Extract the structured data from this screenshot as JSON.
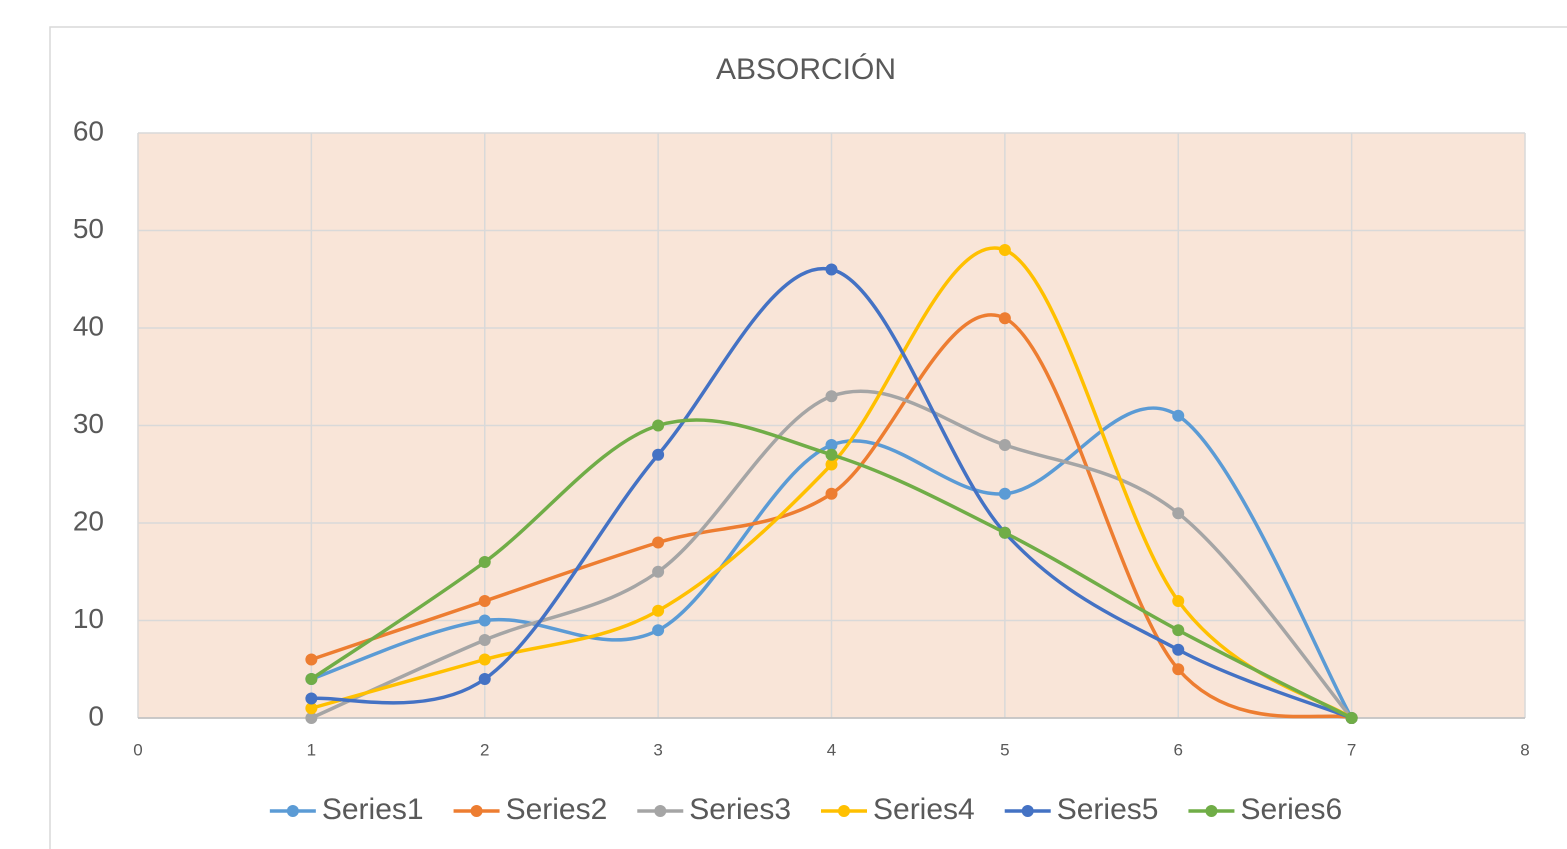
{
  "chart_data": {
    "type": "scatter",
    "title": "ABSORCIÓN",
    "x": [
      1,
      2,
      3,
      4,
      5,
      6,
      7
    ],
    "series": [
      {
        "name": "Series1",
        "color": "#5b9bd5",
        "values": [
          4,
          10,
          9,
          28,
          23,
          31,
          0
        ]
      },
      {
        "name": "Series2",
        "color": "#ed7d31",
        "values": [
          6,
          12,
          18,
          23,
          41,
          5,
          0
        ]
      },
      {
        "name": "Series3",
        "color": "#a5a5a5",
        "values": [
          0,
          8,
          15,
          33,
          28,
          21,
          0
        ]
      },
      {
        "name": "Series4",
        "color": "#ffc000",
        "values": [
          1,
          6,
          11,
          26,
          48,
          12,
          0
        ]
      },
      {
        "name": "Series5",
        "color": "#4472c4",
        "values": [
          2,
          4,
          27,
          46,
          19,
          7,
          0
        ]
      },
      {
        "name": "Series6",
        "color": "#70ad47",
        "values": [
          4,
          16,
          30,
          27,
          19,
          9,
          0
        ]
      }
    ],
    "xlim": [
      0,
      8
    ],
    "xticks": [
      0,
      1,
      2,
      3,
      4,
      5,
      6,
      7,
      8
    ],
    "ylim": [
      0,
      60
    ],
    "yticks": [
      0,
      10,
      20,
      30,
      40,
      50,
      60
    ],
    "grid": true,
    "smooth": true,
    "legend": "bottom",
    "plot_background": "#f9e5d8"
  }
}
